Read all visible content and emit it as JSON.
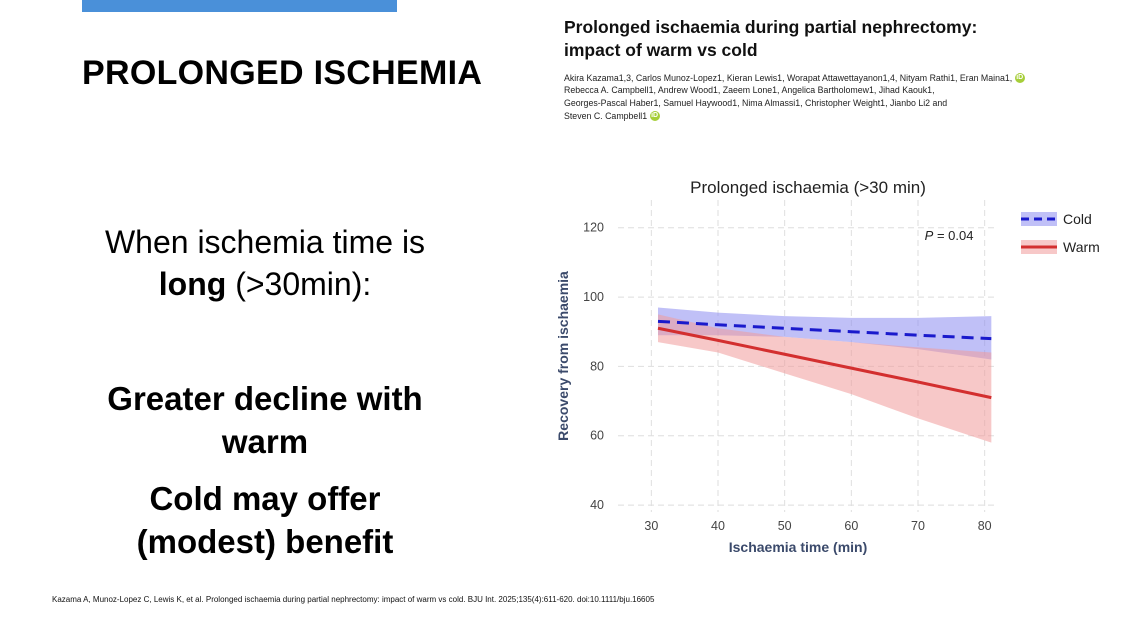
{
  "slide": {
    "title": "PROLONGED ISCHEMIA",
    "line1": "When ischemia time is",
    "line2_bold": "long",
    "line2_rest": " (>30min):",
    "point1_line1": "Greater decline with",
    "point1_line2": "warm",
    "point2_line1": "Cold may offer",
    "point2_line2": "(modest) benefit",
    "citation": "Kazama A, Munoz-Lopez C, Lewis K, et al. Prolonged ischaemia during partial nephrectomy: impact of warm vs cold. BJU Int. 2025;135(4):611-620. doi:10.1111/bju.16605"
  },
  "paper": {
    "title_line1": "Prolonged ischaemia during partial nephrectomy:",
    "title_line2": "impact of warm vs cold",
    "authors_line1": "Akira Kazama1,3, Carlos Munoz-Lopez1, Kieran Lewis1, Worapat Attawettayanon1,4, Nityam Rathi1, Eran Maina1,",
    "authors_line2": "Rebecca A. Campbell1, Andrew Wood1, Zaeem Lone1, Angelica Bartholomew1, Jihad Kaouk1,",
    "authors_line3": "Georges-Pascal Haber1, Samuel Haywood1, Nima Almassi1, Christopher Weight1, Jianbo Li2 and",
    "authors_line4": "Steven C. Campbell1",
    "orcid_glyph": "iD"
  },
  "chart_data": {
    "type": "line",
    "title": "Prolonged ischaemia (>30 min)",
    "xlabel": "Ischaemia time (min)",
    "ylabel": "Recovery from ischaemia",
    "xlim": [
      25,
      82
    ],
    "ylim": [
      38,
      128
    ],
    "x_ticks": [
      30,
      40,
      50,
      60,
      70,
      80
    ],
    "y_ticks": [
      40,
      60,
      80,
      100,
      120
    ],
    "grid": true,
    "legend_position": "top-right",
    "annotation_p": "P",
    "annotation_value": " = 0.04",
    "series": [
      {
        "name": "Cold",
        "color": "#1a1acc",
        "band_color": "#8c8cf0",
        "dash": true,
        "x": [
          31,
          40,
          50,
          60,
          70,
          81
        ],
        "y": [
          93,
          92,
          91,
          90,
          89,
          88
        ],
        "lower": [
          89,
          89,
          88.5,
          87,
          85,
          82
        ],
        "upper": [
          97,
          95.5,
          94.5,
          94,
          94,
          94.5
        ]
      },
      {
        "name": "Warm",
        "color": "#d32f2f",
        "band_color": "#f19a9a",
        "dash": false,
        "x": [
          31,
          40,
          50,
          60,
          70,
          81
        ],
        "y": [
          91,
          87.5,
          83.5,
          79.5,
          75.5,
          71
        ],
        "lower": [
          87,
          84,
          78,
          72,
          65,
          58
        ],
        "upper": [
          95,
          91,
          88.5,
          87,
          85.5,
          84
        ]
      }
    ]
  }
}
